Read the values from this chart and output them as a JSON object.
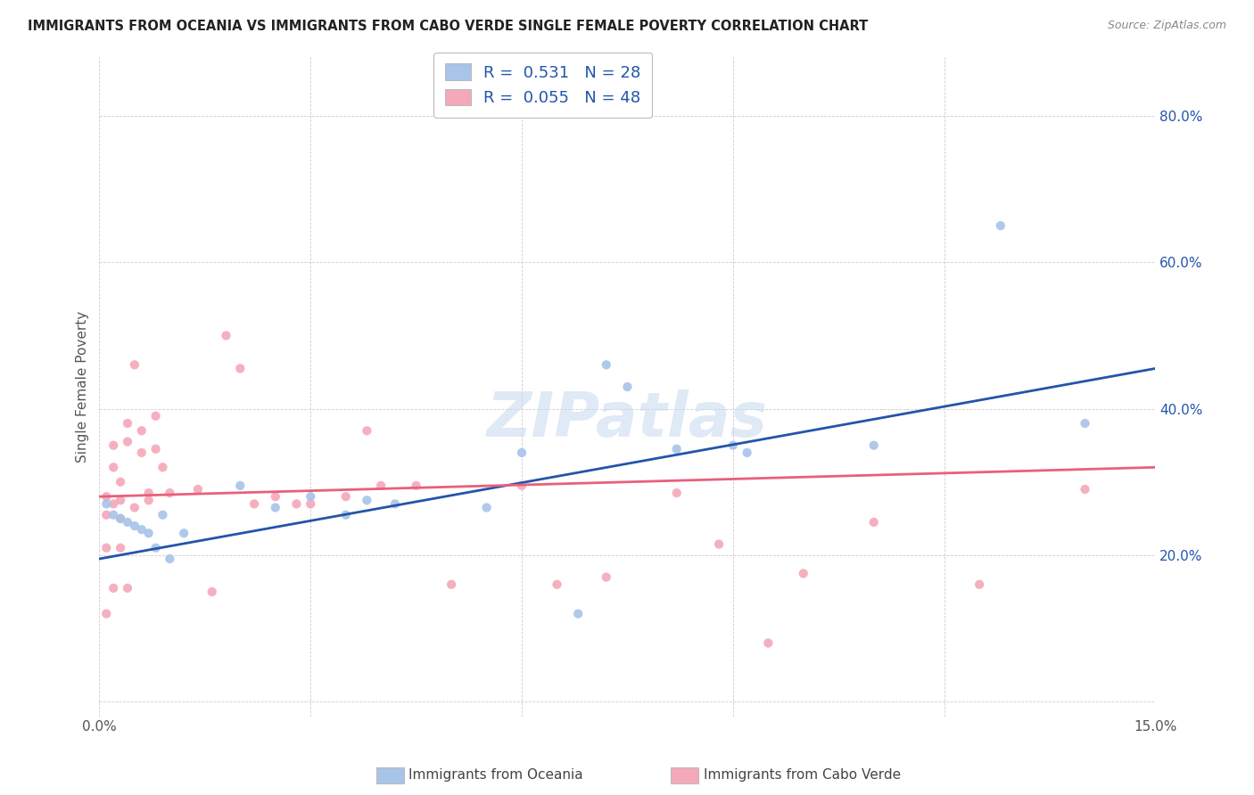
{
  "title": "IMMIGRANTS FROM OCEANIA VS IMMIGRANTS FROM CABO VERDE SINGLE FEMALE POVERTY CORRELATION CHART",
  "source": "Source: ZipAtlas.com",
  "xlabel_blue": "Immigrants from Oceania",
  "xlabel_pink": "Immigrants from Cabo Verde",
  "ylabel": "Single Female Poverty",
  "xlim": [
    0.0,
    0.15
  ],
  "ylim": [
    -0.02,
    0.88
  ],
  "yticks": [
    0.0,
    0.2,
    0.4,
    0.6,
    0.8
  ],
  "ytick_labels": [
    "",
    "20.0%",
    "40.0%",
    "60.0%",
    "80.0%"
  ],
  "xticks": [
    0.0,
    0.03,
    0.06,
    0.09,
    0.12,
    0.15
  ],
  "xtick_labels": [
    "0.0%",
    "",
    "",
    "",
    "",
    "15.0%"
  ],
  "R_blue": 0.531,
  "N_blue": 28,
  "R_pink": 0.055,
  "N_pink": 48,
  "blue_color": "#a8c4e8",
  "pink_color": "#f4a8ba",
  "blue_line_color": "#2255aa",
  "pink_line_color": "#e8607a",
  "watermark": "ZIPatlas",
  "blue_x": [
    0.001,
    0.002,
    0.003,
    0.004,
    0.005,
    0.006,
    0.007,
    0.008,
    0.009,
    0.01,
    0.012,
    0.02,
    0.025,
    0.03,
    0.035,
    0.038,
    0.042,
    0.055,
    0.06,
    0.068,
    0.072,
    0.075,
    0.082,
    0.09,
    0.092,
    0.11,
    0.128,
    0.14
  ],
  "blue_y": [
    0.27,
    0.255,
    0.25,
    0.245,
    0.24,
    0.235,
    0.23,
    0.21,
    0.255,
    0.195,
    0.23,
    0.295,
    0.265,
    0.28,
    0.255,
    0.275,
    0.27,
    0.265,
    0.34,
    0.12,
    0.46,
    0.43,
    0.345,
    0.35,
    0.34,
    0.35,
    0.65,
    0.38
  ],
  "pink_x": [
    0.001,
    0.001,
    0.001,
    0.001,
    0.002,
    0.002,
    0.002,
    0.002,
    0.003,
    0.003,
    0.003,
    0.003,
    0.004,
    0.004,
    0.004,
    0.005,
    0.005,
    0.006,
    0.006,
    0.007,
    0.007,
    0.008,
    0.008,
    0.009,
    0.01,
    0.014,
    0.016,
    0.018,
    0.02,
    0.022,
    0.025,
    0.028,
    0.03,
    0.035,
    0.038,
    0.04,
    0.045,
    0.05,
    0.06,
    0.065,
    0.072,
    0.082,
    0.088,
    0.095,
    0.1,
    0.11,
    0.125,
    0.14
  ],
  "pink_y": [
    0.28,
    0.255,
    0.21,
    0.12,
    0.35,
    0.32,
    0.27,
    0.155,
    0.3,
    0.275,
    0.25,
    0.21,
    0.155,
    0.38,
    0.355,
    0.46,
    0.265,
    0.34,
    0.37,
    0.275,
    0.285,
    0.345,
    0.39,
    0.32,
    0.285,
    0.29,
    0.15,
    0.5,
    0.455,
    0.27,
    0.28,
    0.27,
    0.27,
    0.28,
    0.37,
    0.295,
    0.295,
    0.16,
    0.295,
    0.16,
    0.17,
    0.285,
    0.215,
    0.08,
    0.175,
    0.245,
    0.16,
    0.29
  ],
  "blue_line_y0": 0.195,
  "blue_line_y1": 0.455,
  "pink_line_y0": 0.28,
  "pink_line_y1": 0.32
}
